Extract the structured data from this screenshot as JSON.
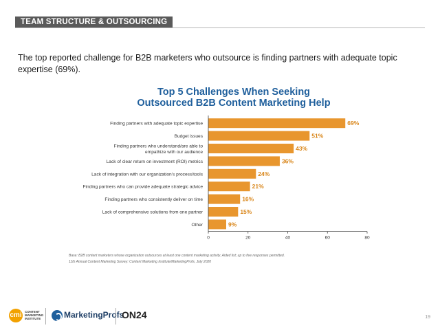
{
  "header": {
    "section_label": "TEAM STRUCTURE & OUTSOURCING"
  },
  "intro_text": "The top reported challenge for B2B marketers who outsource is finding partners with adequate topic expertise (69%).",
  "chart_data": {
    "type": "bar",
    "orientation": "horizontal",
    "title_line1": "Top 5 Challenges When Seeking",
    "title_line2": "Outsourced B2B Content Marketing Help",
    "categories": [
      [
        "Finding partners with adequate topic expertise"
      ],
      [
        "Budget issues"
      ],
      [
        "Finding partners who understand/are able to",
        "empathize with our audience"
      ],
      [
        "Lack of clear return on investment (ROI) metrics"
      ],
      [
        "Lack of integration with our organization’s process/tools"
      ],
      [
        "Finding partners who can provide adequate strategic advice"
      ],
      [
        "Finding partners who consistently deliver on time"
      ],
      [
        "Lack of comprehensive solutions from one partner"
      ],
      [
        "Other"
      ]
    ],
    "values": [
      69,
      51,
      43,
      36,
      24,
      21,
      16,
      15,
      9
    ],
    "value_labels": [
      "69%",
      "51%",
      "43%",
      "36%",
      "24%",
      "21%",
      "16%",
      "15%",
      "9%"
    ],
    "xlim": [
      0,
      80
    ],
    "xticks": [
      0,
      20,
      40,
      60,
      80
    ],
    "bar_color": "#e8962e",
    "label_color": "#d9861a",
    "grid": false,
    "legend": "none"
  },
  "notes": {
    "base": "Base: B2B content marketers whose organization outsources at least one content marketing activity. Aided list; up to five responses permitted.",
    "source": "11th Annual Content Marketing Survey: Content Marketing Institute/MarketingProfs, July 2020"
  },
  "logos": {
    "cmi_mark": "cmi",
    "cmi_text": [
      "CONTENT",
      "MARKETING",
      "INSTITUTE"
    ],
    "marketingprofs": "MarketingProfs",
    "on24": "ON24"
  },
  "page_number": "19"
}
